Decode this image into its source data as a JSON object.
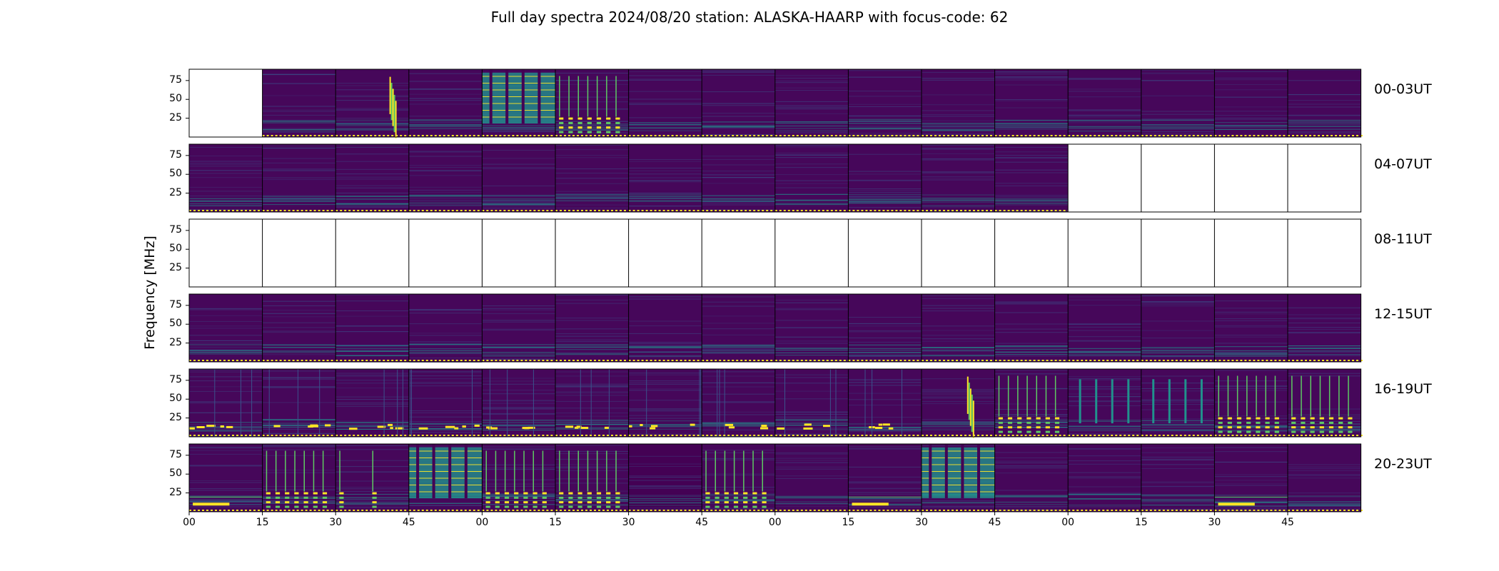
{
  "title": "Full day spectra 2024/08/20 station: ALASKA-HAARP with focus-code: 62",
  "chart_data": {
    "type": "heatmap",
    "title": "Full day spectra 2024/08/20 station: ALASKA-HAARP with focus-code: 62",
    "ylabel": "Frequency [MHz]",
    "xlabel": "",
    "y_ticks": [
      "75",
      "50",
      "25"
    ],
    "x_ticks": [
      "00",
      "15",
      "30",
      "45",
      "00",
      "15",
      "30",
      "45",
      "00",
      "15",
      "30",
      "45",
      "00",
      "15",
      "30",
      "45"
    ],
    "rows": [
      {
        "label": "00-03UT",
        "panels": [
          "empty",
          "quiet",
          "burst",
          "quiet",
          "strong",
          "striped",
          "quiet",
          "quiet",
          "quiet",
          "quiet",
          "quiet",
          "quiet",
          "quiet",
          "quiet",
          "quiet",
          "quiet"
        ]
      },
      {
        "label": "04-07UT",
        "panels": [
          "quiet",
          "quiet",
          "quiet",
          "quiet",
          "quiet",
          "quiet",
          "quiet",
          "quiet",
          "quiet",
          "quiet",
          "quiet",
          "quiet",
          "empty",
          "empty",
          "empty",
          "empty"
        ]
      },
      {
        "label": "08-11UT",
        "panels": [
          "empty",
          "empty",
          "empty",
          "empty",
          "empty",
          "empty",
          "empty",
          "empty",
          "empty",
          "empty",
          "empty",
          "empty",
          "empty",
          "empty",
          "empty",
          "empty"
        ]
      },
      {
        "label": "12-15UT",
        "panels": [
          "quiet",
          "quiet",
          "quiet",
          "quiet",
          "quiet",
          "quiet",
          "quiet",
          "quiet",
          "quiet",
          "quiet",
          "quiet",
          "quiet",
          "quiet",
          "quiet",
          "quiet",
          "quiet"
        ]
      },
      {
        "label": "16-19UT",
        "panels": [
          "active",
          "active",
          "active",
          "active",
          "active",
          "active",
          "active",
          "active",
          "active",
          "active",
          "burst",
          "striped",
          "verticals",
          "verticals",
          "striped",
          "striped"
        ]
      },
      {
        "label": "20-23UT",
        "panels": [
          "lowband",
          "striped",
          "ladder",
          "strong",
          "striped",
          "striped",
          "dark",
          "striped",
          "quiet",
          "lowband",
          "strong",
          "quiet",
          "quiet",
          "quiet",
          "lowband",
          "quiet"
        ]
      }
    ],
    "colormap": [
      "#440154",
      "#3b528b",
      "#21918c",
      "#5ec962",
      "#fde725"
    ]
  }
}
